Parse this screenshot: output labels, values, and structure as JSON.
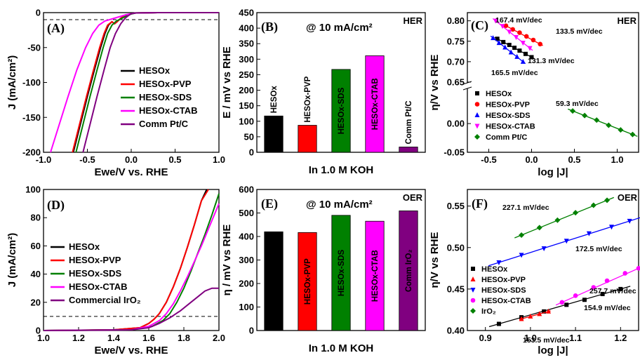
{
  "chart_data": [
    {
      "id": "A",
      "type": "line",
      "panel_label": "(A)",
      "xlabel": "Ewe/V vs. RHE",
      "ylabel": "J (mA/cm²)",
      "xlim": [
        -1.0,
        1.0
      ],
      "ylim": [
        -200,
        0
      ],
      "xticks": [
        "-1.0",
        "-0.5",
        "0.0",
        "0.5",
        "1.0"
      ],
      "yticks": [
        "-200",
        "-150",
        "-100",
        "-50",
        "0"
      ],
      "reference_line_y": -10,
      "legend_position": "center-right",
      "series": [
        {
          "name": "HESOx",
          "color": "#000000",
          "x": [
            -0.66,
            -0.58,
            -0.5,
            -0.42,
            -0.35,
            -0.3,
            -0.26,
            -0.22,
            -0.19,
            -0.16,
            -0.12,
            -0.08,
            -0.04,
            0.0,
            0.05,
            0.3,
            1.0
          ],
          "y": [
            -200,
            -160,
            -120,
            -82,
            -50,
            -30,
            -18,
            -13,
            -16,
            -13,
            -8,
            -5,
            -3,
            -1.5,
            -0.5,
            0,
            0
          ]
        },
        {
          "name": "HESOx-PVP",
          "color": "#ff0000",
          "x": [
            -0.67,
            -0.59,
            -0.51,
            -0.43,
            -0.36,
            -0.31,
            -0.27,
            -0.22,
            -0.19,
            -0.16,
            -0.12,
            -0.08,
            -0.04,
            0.0,
            0.05,
            0.3,
            1.0
          ],
          "y": [
            -200,
            -160,
            -120,
            -82,
            -50,
            -30,
            -18,
            -13,
            -16,
            -13,
            -8,
            -5,
            -3,
            -1.5,
            -0.5,
            0,
            0
          ]
        },
        {
          "name": "HESOx-SDS",
          "color": "#008000",
          "x": [
            -0.63,
            -0.55,
            -0.47,
            -0.39,
            -0.32,
            -0.27,
            -0.22,
            -0.17,
            -0.12,
            -0.06,
            0.0,
            0.05,
            0.3,
            1.0
          ],
          "y": [
            -200,
            -160,
            -120,
            -82,
            -50,
            -30,
            -18,
            -12,
            -9,
            -5,
            -2,
            -0.5,
            0,
            0
          ]
        },
        {
          "name": "HESOx-CTAB",
          "color": "#ff00ff",
          "x": [
            -0.92,
            -0.82,
            -0.72,
            -0.62,
            -0.52,
            -0.44,
            -0.37,
            -0.3,
            -0.22,
            -0.14,
            -0.06,
            0.0,
            0.05,
            0.3,
            1.0
          ],
          "y": [
            -200,
            -160,
            -120,
            -82,
            -50,
            -30,
            -18,
            -12,
            -9,
            -6,
            -3,
            -1.5,
            -0.5,
            0,
            0
          ]
        },
        {
          "name": "Comm Pt/C",
          "color": "#800080",
          "x": [
            -0.55,
            -0.47,
            -0.39,
            -0.31,
            -0.24,
            -0.18,
            -0.12,
            -0.07,
            -0.03,
            0.0,
            0.05,
            0.3,
            1.0
          ],
          "y": [
            -200,
            -160,
            -120,
            -82,
            -50,
            -30,
            -16,
            -8,
            -4,
            -1.5,
            -0.5,
            0,
            0
          ]
        }
      ]
    },
    {
      "id": "B",
      "type": "bar",
      "panel_label": "(B)",
      "condition": "@ 10 mA/cm²",
      "tag": "HER",
      "xlabel": "In 1.0 M KOH",
      "ylabel": "E / mV vs RHE",
      "ylim": [
        0,
        450
      ],
      "yticks": [
        "0",
        "50",
        "100",
        "150",
        "200",
        "250",
        "300",
        "350",
        "400",
        "450"
      ],
      "categories": [
        "HESOx",
        "HESOx-PVP",
        "HESOx-SDS",
        "HESOx-CTAB",
        "Comm Pt/C"
      ],
      "values": [
        117,
        87,
        267,
        311,
        17
      ],
      "colors": [
        "#000000",
        "#ff0000",
        "#008000",
        "#ff00ff",
        "#800080"
      ]
    },
    {
      "id": "C",
      "type": "scatter",
      "panel_label": "(C)",
      "tag": "HER",
      "xlabel": "log |J|",
      "ylabel": "η/V vs RHE",
      "xlim": [
        -0.75,
        1.25
      ],
      "xticks": [
        "-0.5",
        "0.0",
        "0.5",
        "1.0"
      ],
      "yticks": [
        "-0.05",
        "0.00",
        "0.65",
        "0.70",
        "0.75",
        "0.80"
      ],
      "broken_y_axis": {
        "lower": [
          -0.05,
          0.06
        ],
        "upper": [
          0.65,
          0.82
        ]
      },
      "legend_position": "bottom-left",
      "series": [
        {
          "name": "HESOx",
          "color": "#000000",
          "marker": "square",
          "slope_label": "131.3 mV/dec",
          "x": [
            -0.4,
            -0.33,
            -0.26,
            -0.2,
            -0.14,
            -0.07,
            0.0
          ],
          "y": [
            0.756,
            0.748,
            0.741,
            0.734,
            0.727,
            0.719,
            0.711
          ]
        },
        {
          "name": "HESOx-PVP",
          "color": "#ff0000",
          "marker": "circle",
          "slope_label": "133.5 mV/dec",
          "x": [
            -0.3,
            -0.22,
            -0.14,
            -0.06,
            0.02,
            0.1
          ],
          "y": [
            0.788,
            0.779,
            0.771,
            0.762,
            0.753,
            0.743
          ]
        },
        {
          "name": "HESOx-SDS",
          "color": "#0000ff",
          "marker": "triangle-up",
          "slope_label": "165.5 mV/dec",
          "x": [
            -0.45,
            -0.38,
            -0.31,
            -0.24,
            -0.17,
            -0.1
          ],
          "y": [
            0.758,
            0.746,
            0.735,
            0.723,
            0.712,
            0.7
          ]
        },
        {
          "name": "HESOx-CTAB",
          "color": "#ff00ff",
          "marker": "triangle-down",
          "slope_label": "167.4 mV/dec",
          "x": [
            -0.42,
            -0.34,
            -0.26,
            -0.18,
            -0.1,
            -0.02
          ],
          "y": [
            0.8,
            0.787,
            0.773,
            0.76,
            0.746,
            0.733
          ]
        },
        {
          "name": "Comm Pt/C",
          "color": "#008000",
          "marker": "diamond",
          "slope_label": "59.3 mV/dec",
          "x": [
            0.48,
            0.62,
            0.76,
            0.9,
            1.04,
            1.18
          ],
          "y": [
            0.022,
            0.014,
            0.006,
            -0.003,
            -0.011,
            -0.019
          ]
        }
      ]
    },
    {
      "id": "D",
      "type": "line",
      "panel_label": "(D)",
      "xlabel": "Ewe/V vs. RHE",
      "ylabel": "J (mA/cm²)",
      "xlim": [
        1.0,
        2.0
      ],
      "ylim": [
        0,
        100
      ],
      "xticks": [
        "1.0",
        "1.2",
        "1.4",
        "1.6",
        "1.8",
        "2.0"
      ],
      "yticks": [
        "0",
        "20",
        "40",
        "60",
        "80",
        "100"
      ],
      "reference_line_y": 10,
      "legend_position": "center-left",
      "series": [
        {
          "name": "HESOx",
          "color": "#000000",
          "x": [
            1.0,
            1.4,
            1.55,
            1.6,
            1.63,
            1.66,
            1.7,
            1.74,
            1.78,
            1.82,
            1.86,
            1.9,
            1.93
          ],
          "y": [
            0,
            0.5,
            2,
            5,
            8,
            12,
            20,
            31,
            44,
            59,
            75,
            92,
            100
          ]
        },
        {
          "name": "HESOx-PVP",
          "color": "#ff0000",
          "x": [
            1.0,
            1.4,
            1.55,
            1.6,
            1.63,
            1.66,
            1.7,
            1.74,
            1.78,
            1.82,
            1.86,
            1.9,
            1.94
          ],
          "y": [
            0,
            0.5,
            2,
            5,
            8,
            12,
            20,
            31,
            44,
            59,
            75,
            92,
            100
          ]
        },
        {
          "name": "HESOx-SDS",
          "color": "#008000",
          "x": [
            1.0,
            1.5,
            1.62,
            1.68,
            1.72,
            1.76,
            1.8,
            1.84,
            1.88,
            1.92,
            1.96,
            2.0
          ],
          "y": [
            0,
            0.5,
            3,
            7,
            12,
            20,
            30,
            42,
            55,
            68,
            82,
            97
          ]
        },
        {
          "name": "HESOx-CTAB",
          "color": "#ff00ff",
          "x": [
            1.0,
            1.5,
            1.6,
            1.66,
            1.7,
            1.74,
            1.78,
            1.82,
            1.86,
            1.9,
            1.94,
            1.98,
            2.0
          ],
          "y": [
            0,
            0.5,
            3,
            7,
            12,
            19,
            28,
            38,
            49,
            60,
            72,
            84,
            90
          ]
        },
        {
          "name": "Commercial IrO₂",
          "color": "#800080",
          "x": [
            1.0,
            1.5,
            1.6,
            1.66,
            1.72,
            1.78,
            1.84,
            1.88,
            1.92,
            1.96,
            2.0
          ],
          "y": [
            0,
            0.5,
            2,
            5,
            9,
            14,
            20,
            24,
            28,
            30,
            30
          ]
        }
      ]
    },
    {
      "id": "E",
      "type": "bar",
      "panel_label": "(E)",
      "condition": "@ 10 mA/cm²",
      "tag": "OER",
      "xlabel": "In 1.0 M KOH",
      "ylabel": "η / mV vs RHE",
      "ylim": [
        0,
        600
      ],
      "yticks": [
        "0",
        "100",
        "200",
        "300",
        "400",
        "500",
        "600"
      ],
      "categories": [
        "HESOx",
        "HESOx-PVP",
        "HESOx-SDS",
        "HESOx-CTAB",
        "Comm IrO₂"
      ],
      "values": [
        420,
        417,
        490,
        465,
        509
      ],
      "colors": [
        "#000000",
        "#ff0000",
        "#008000",
        "#ff00ff",
        "#800080"
      ]
    },
    {
      "id": "F",
      "type": "scatter",
      "panel_label": "(F)",
      "tag": "OER",
      "xlabel": "log |J|",
      "ylabel": "η/V vs RHE",
      "xlim": [
        0.86,
        1.24
      ],
      "ylim": [
        0.4,
        0.57
      ],
      "xticks": [
        "0.9",
        "1.0",
        "1.1",
        "1.2"
      ],
      "yticks": [
        "0.40",
        "0.45",
        "0.50",
        "0.55"
      ],
      "legend_position": "bottom-left",
      "series": [
        {
          "name": "HESOx",
          "color": "#000000",
          "marker": "square",
          "slope_label": "154.9 mV/dec",
          "x": [
            0.93,
            0.98,
            1.03,
            1.08,
            1.12,
            1.16,
            1.2
          ],
          "y": [
            0.408,
            0.416,
            0.423,
            0.431,
            0.437,
            0.444,
            0.45
          ]
        },
        {
          "name": "HESOx-PVP",
          "color": "#ff0000",
          "marker": "triangle-up",
          "slope_label": "153.5 mV/dec",
          "x": [
            0.98,
            1.0,
            1.02,
            1.04
          ],
          "y": [
            0.414,
            0.417,
            0.42,
            0.423
          ]
        },
        {
          "name": "HESOx-SDS",
          "color": "#0000ff",
          "marker": "triangle-down",
          "slope_label": "172.5 mV/dec",
          "x": [
            0.93,
            0.98,
            1.03,
            1.08,
            1.13,
            1.18,
            1.22
          ],
          "y": [
            0.482,
            0.491,
            0.499,
            0.508,
            0.517,
            0.525,
            0.532
          ]
        },
        {
          "name": "HESOx-CTAB",
          "color": "#ff00ff",
          "marker": "circle",
          "slope_label": "257.7 mV/dec",
          "x": [
            1.07,
            1.1,
            1.14,
            1.17,
            1.21,
            1.24
          ],
          "y": [
            0.434,
            0.442,
            0.452,
            0.46,
            0.469,
            0.475
          ]
        },
        {
          "name": "IrO₂",
          "color": "#008000",
          "marker": "diamond",
          "slope_label": "227.1 mV/dec",
          "x": [
            0.98,
            1.02,
            1.06,
            1.1,
            1.14,
            1.17
          ],
          "y": [
            0.515,
            0.524,
            0.533,
            0.542,
            0.551,
            0.557
          ]
        }
      ]
    }
  ]
}
